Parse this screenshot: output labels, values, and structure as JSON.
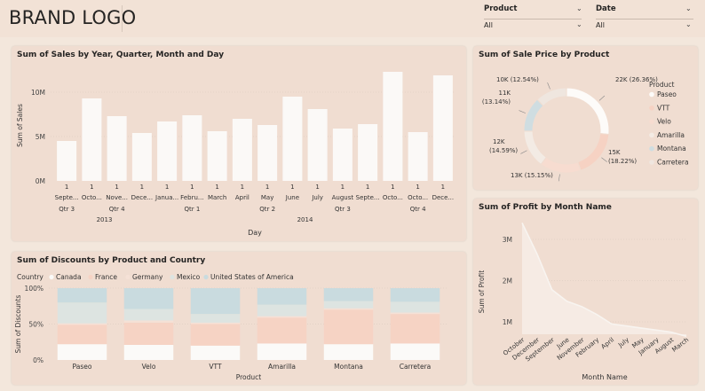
{
  "header": {
    "brand": "BRAND LOGO",
    "slicers": [
      {
        "label": "Product",
        "value": "All"
      },
      {
        "label": "Date",
        "value": "All"
      }
    ]
  },
  "colors": {
    "bar": "#fbf9f7",
    "paseo": "#fdfbf9",
    "vtt": "#f6d2c3",
    "velo": "#f7dcd0",
    "amarilla": "#f3ebe4",
    "montana": "#cfdde1",
    "carreta": "#efe6df",
    "canada": "#fbfaf8",
    "france": "#f6d3c4",
    "germany": "#f5e1d6",
    "mexico": "#dde4e1",
    "usa": "#c9dbdf",
    "area": "#f6ebe4",
    "line": "#f8f4f0"
  },
  "chart_data": [
    {
      "type": "bar",
      "title": "Sum of Sales by Year, Quarter, Month and Day",
      "xlabel": "Day",
      "ylabel": "Sum of Sales",
      "ylim": [
        0,
        12500000
      ],
      "yticks": [
        "0M",
        "5M",
        "10M"
      ],
      "yticks_values": [
        0,
        5000000,
        10000000
      ],
      "day_labels": [
        "1",
        "1",
        "1",
        "1",
        "1",
        "1",
        "1",
        "1",
        "1",
        "1",
        "1",
        "1",
        "1",
        "1",
        "1",
        "1"
      ],
      "categories": [
        "Septe...",
        "Octo...",
        "Nove...",
        "Dece...",
        "Janua...",
        "Febru...",
        "March",
        "April",
        "May",
        "June",
        "July",
        "August",
        "Septe...",
        "Octo...",
        "Octo...",
        "Dece..."
      ],
      "values": [
        4500000,
        9300000,
        7300000,
        5400000,
        6700000,
        7400000,
        5600000,
        7000000,
        6300000,
        9500000,
        8100000,
        5900000,
        6400000,
        12300000,
        5500000,
        11900000
      ],
      "quarters": [
        {
          "label": "Qtr 3",
          "start": 0,
          "end": 0
        },
        {
          "label": "Qtr 4",
          "start": 1,
          "end": 3
        },
        {
          "label": "Qtr 1",
          "start": 4,
          "end": 6
        },
        {
          "label": "Qtr 2",
          "start": 7,
          "end": 9
        },
        {
          "label": "Qtr 3",
          "start": 10,
          "end": 12
        },
        {
          "label": "Qtr 4",
          "start": 13,
          "end": 15
        }
      ],
      "years": [
        {
          "label": "2013",
          "start": 0,
          "end": 3
        },
        {
          "label": "2014",
          "start": 4,
          "end": 15
        }
      ]
    },
    {
      "type": "pie",
      "title": "Sum of Sale Price by Product",
      "legend_title": "Product",
      "slices": [
        {
          "name": "Paseo",
          "value": 22,
          "label": "22K (26.36%)",
          "color": "#fdfbf9"
        },
        {
          "name": "VTT",
          "value": 15,
          "label": "15K (18.22%)",
          "color": "#f6d2c3"
        },
        {
          "name": "Velo",
          "value": 13,
          "label": "13K (15.15%)",
          "color": "#f7dcd0"
        },
        {
          "name": "Amarilla",
          "value": 12,
          "label": "12K (14.59%)",
          "color": "#f3ebe4"
        },
        {
          "name": "Montana",
          "value": 11,
          "label": "11K (13.14%)",
          "color": "#cfdde1"
        },
        {
          "name": "Carretera",
          "value": 10,
          "label": "10K (12.54%)",
          "color": "#efe6df"
        }
      ]
    },
    {
      "type": "bar",
      "stacked": "percent",
      "title": "Sum of Discounts by Product and Country",
      "xlabel": "Product",
      "ylabel": "Sum of Discounts",
      "legend_title": "Country",
      "yticks": [
        "0%",
        "50%",
        "100%"
      ],
      "categories": [
        "Paseo",
        "Velo",
        "VTT",
        "Amarilla",
        "Montana",
        "Carretera"
      ],
      "series": [
        {
          "name": "Canada",
          "values": [
            22,
            21,
            20,
            23,
            22,
            23
          ],
          "color": "#fbfaf8"
        },
        {
          "name": "France",
          "values": [
            27,
            31,
            30,
            36,
            48,
            41
          ],
          "color": "#f6d3c4"
        },
        {
          "name": "Germany",
          "values": [
            2,
            3,
            2,
            2,
            2,
            2
          ],
          "color": "#f5e1d6"
        },
        {
          "name": "Mexico",
          "values": [
            29,
            16,
            12,
            16,
            10,
            15
          ],
          "color": "#dde4e1"
        },
        {
          "name": "United States of America",
          "values": [
            20,
            29,
            36,
            23,
            18,
            19
          ],
          "color": "#c9dbdf"
        }
      ]
    },
    {
      "type": "area",
      "title": "Sum of Profit by Month Name",
      "xlabel": "Month Name",
      "ylabel": "Sum of Profit",
      "yticks": [
        "1M",
        "2M",
        "3M"
      ],
      "yticks_values": [
        1000000,
        2000000,
        3000000
      ],
      "categories": [
        "October",
        "December",
        "September",
        "June",
        "November",
        "February",
        "April",
        "July",
        "May",
        "January",
        "August",
        "March"
      ],
      "values": [
        3400000,
        2650000,
        1780000,
        1500000,
        1370000,
        1180000,
        950000,
        900000,
        850000,
        800000,
        750000,
        650000
      ]
    }
  ]
}
